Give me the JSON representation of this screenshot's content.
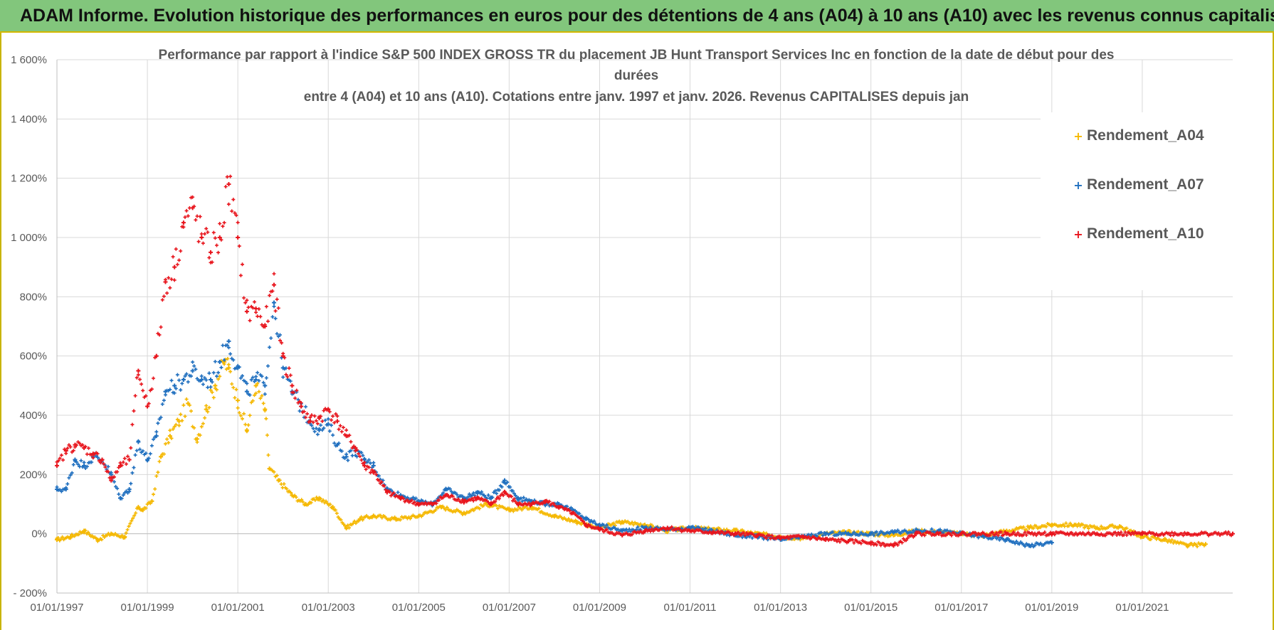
{
  "banner": {
    "title": "ADAM Informe. Evolution historique des performances en euros pour des détentions de 4 ans (A04) à 10 ans (A10) avec les revenus connus capitalisés"
  },
  "colors": {
    "banner_bg": "#82c67c",
    "series_A04": "#f5b800",
    "series_A07": "#1f6fbf",
    "series_A10": "#e8141c",
    "grid": "#d9d9d9",
    "text": "#595959"
  },
  "chart_data": {
    "type": "scatter",
    "title_lines": [
      "Performance par rapport à l'indice S&P 500 INDEX GROSS TR  du placement JB Hunt Transport Services Inc en fonction de la date de début pour des",
      "durées",
      "entre 4 (A04) et 10 ans (A10).  Cotations entre janv. 1997 et janv. 2026. Revenus CAPITALISES depuis jan"
    ],
    "ylim": [
      -200,
      1600
    ],
    "yticks": [
      -200,
      0,
      200,
      400,
      600,
      800,
      1000,
      1200,
      1400,
      1600
    ],
    "ytick_labels": [
      "- 200%",
      "0%",
      "200%",
      "400%",
      "600%",
      "800%",
      "1 000%",
      "1 200%",
      "1 400%",
      "1 600%"
    ],
    "xlim": [
      1997.0,
      2023.0
    ],
    "xticks": [
      1997,
      1999,
      2001,
      2003,
      2005,
      2007,
      2009,
      2011,
      2013,
      2015,
      2017,
      2019,
      2021
    ],
    "xtick_labels": [
      "01/01/1997",
      "01/01/1999",
      "01/01/2001",
      "01/01/2003",
      "01/01/2005",
      "01/01/2007",
      "01/01/2009",
      "01/01/2011",
      "01/01/2013",
      "01/01/2015",
      "01/01/2017",
      "01/01/2019",
      "01/01/2021"
    ],
    "legend_position": "top-right",
    "series": [
      {
        "name": "Rendement_A04",
        "x": [
          1997.0,
          1997.3,
          1997.6,
          1997.9,
          1998.2,
          1998.5,
          1998.8,
          1998.9,
          1999.1,
          1999.3,
          1999.5,
          1999.7,
          1999.9,
          2000.1,
          2000.3,
          2000.5,
          2000.7,
          2000.8,
          2001.0,
          2001.2,
          2001.4,
          2001.6,
          2001.7,
          2001.9,
          2002.2,
          2002.5,
          2002.8,
          2003.1,
          2003.4,
          2003.7,
          2004.0,
          2004.5,
          2005.0,
          2005.5,
          2006.0,
          2006.5,
          2007.0,
          2007.5,
          2008.0,
          2008.5,
          2009.0,
          2009.5,
          2010.0,
          2010.5,
          2011.0,
          2011.5,
          2012.0,
          2012.5,
          2013.0,
          2013.5,
          2014.0,
          2014.5,
          2015.0,
          2015.5,
          2016.0,
          2016.5,
          2017.0,
          2017.5,
          2018.0,
          2018.5,
          2019.0,
          2019.5,
          2020.0,
          2020.5,
          2021.0,
          2021.5,
          2022.0,
          2022.4
        ],
        "y": [
          -20,
          -10,
          10,
          -20,
          0,
          -10,
          90,
          80,
          110,
          260,
          330,
          380,
          440,
          320,
          420,
          500,
          580,
          560,
          450,
          350,
          500,
          420,
          220,
          180,
          130,
          100,
          120,
          90,
          20,
          50,
          60,
          50,
          60,
          90,
          70,
          100,
          80,
          90,
          60,
          40,
          20,
          40,
          30,
          10,
          20,
          15,
          10,
          0,
          -10,
          -15,
          0,
          5,
          0,
          -5,
          10,
          5,
          0,
          -5,
          10,
          20,
          30,
          30,
          20,
          25,
          -10,
          -20,
          -40,
          -35
        ]
      },
      {
        "name": "Rendement_A07",
        "x": [
          1997.0,
          1997.2,
          1997.4,
          1997.6,
          1997.8,
          1998.0,
          1998.2,
          1998.4,
          1998.6,
          1998.8,
          1999.0,
          1999.2,
          1999.4,
          1999.6,
          1999.8,
          2000.0,
          2000.2,
          2000.4,
          2000.6,
          2000.8,
          2001.0,
          2001.2,
          2001.4,
          2001.6,
          2001.8,
          2002.0,
          2002.2,
          2002.4,
          2002.6,
          2002.8,
          2003.0,
          2003.2,
          2003.4,
          2003.6,
          2003.8,
          2004.0,
          2004.3,
          2004.6,
          2005.0,
          2005.3,
          2005.6,
          2006.0,
          2006.3,
          2006.6,
          2006.9,
          2007.2,
          2007.5,
          2007.8,
          2008.1,
          2008.4,
          2008.7,
          2009.0,
          2009.5,
          2010.0,
          2010.5,
          2011.0,
          2011.5,
          2012.0,
          2012.5,
          2013.0,
          2013.5,
          2014.0,
          2014.5,
          2015.0,
          2015.5,
          2016.0,
          2016.5,
          2017.0,
          2017.5,
          2018.0,
          2018.5,
          2019.0
        ],
        "y": [
          150,
          150,
          250,
          230,
          260,
          250,
          200,
          120,
          150,
          310,
          250,
          330,
          480,
          500,
          520,
          550,
          520,
          520,
          580,
          650,
          560,
          480,
          520,
          500,
          780,
          560,
          480,
          430,
          380,
          350,
          370,
          300,
          260,
          280,
          250,
          230,
          150,
          130,
          110,
          100,
          150,
          120,
          140,
          120,
          180,
          120,
          110,
          100,
          100,
          80,
          50,
          30,
          10,
          20,
          15,
          20,
          10,
          -5,
          -10,
          -20,
          -10,
          0,
          0,
          0,
          5,
          10,
          10,
          0,
          -10,
          -20,
          -40,
          -30
        ]
      },
      {
        "name": "Rendement_A10",
        "x": [
          1997.0,
          1997.2,
          1997.4,
          1997.6,
          1997.8,
          1998.0,
          1998.2,
          1998.4,
          1998.6,
          1998.8,
          1999.0,
          1999.2,
          1999.4,
          1999.6,
          1999.8,
          2000.0,
          2000.2,
          2000.4,
          2000.6,
          2000.8,
          2001.0,
          2001.2,
          2001.4,
          2001.6,
          2001.8,
          2002.0,
          2002.2,
          2002.4,
          2002.6,
          2002.8,
          2003.0,
          2003.2,
          2003.4,
          2003.6,
          2003.8,
          2004.0,
          2004.3,
          2004.6,
          2005.0,
          2005.3,
          2005.6,
          2006.0,
          2006.3,
          2006.6,
          2006.9,
          2007.2,
          2007.5,
          2007.8,
          2008.1,
          2008.4,
          2008.7,
          2009.0,
          2009.5,
          2010.0,
          2010.5,
          2011.0,
          2011.5,
          2012.0,
          2012.5,
          2013.0,
          2013.5,
          2014.0,
          2014.5,
          2015.0,
          2015.5,
          2016.0,
          2016.5,
          2017.0,
          2018.0,
          2019.0,
          2020.0,
          2021.0,
          2022.0,
          2023.0
        ],
        "y": [
          230,
          280,
          300,
          290,
          270,
          250,
          180,
          230,
          250,
          550,
          430,
          600,
          850,
          900,
          1050,
          1100,
          1000,
          950,
          1000,
          1180,
          1000,
          750,
          760,
          700,
          840,
          600,
          500,
          430,
          380,
          390,
          420,
          380,
          330,
          290,
          230,
          210,
          140,
          120,
          100,
          100,
          130,
          110,
          120,
          100,
          140,
          100,
          100,
          110,
          90,
          70,
          30,
          15,
          -5,
          10,
          20,
          10,
          5,
          0,
          -5,
          -15,
          -10,
          -20,
          -25,
          -30,
          -40,
          0,
          0,
          0,
          0,
          0,
          0,
          0,
          0,
          0
        ]
      }
    ]
  }
}
